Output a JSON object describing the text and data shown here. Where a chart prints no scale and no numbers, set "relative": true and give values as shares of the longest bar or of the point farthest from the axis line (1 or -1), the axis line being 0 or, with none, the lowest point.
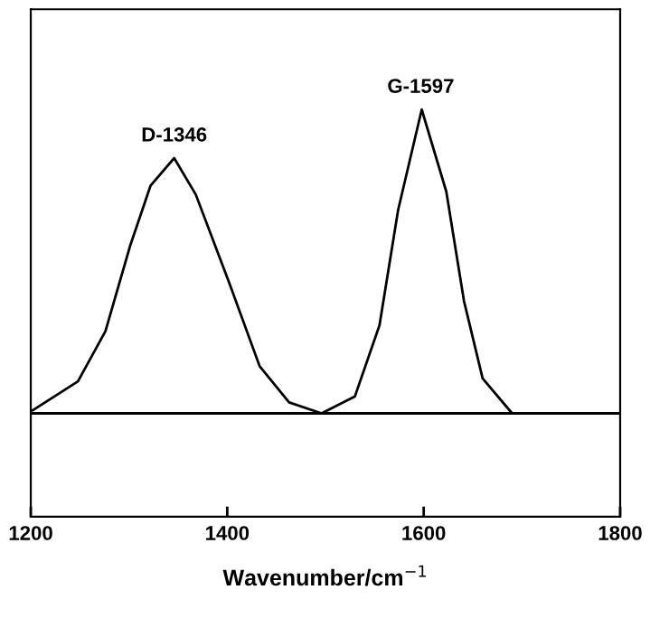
{
  "chart_data": {
    "type": "line",
    "relative": true,
    "xlabel": "Wavenumber/cm$^{−1}$",
    "xlim": [
      1200,
      1800
    ],
    "xticks": [
      1200,
      1400,
      1600,
      1800
    ],
    "series": [
      {
        "color": "#000000",
        "x": [
          1202,
          1248,
          1276,
          1301,
          1322,
          1346,
          1368,
          1402,
          1433,
          1463,
          1496,
          1530,
          1555,
          1574,
          1598,
          1623,
          1641,
          1660,
          1690,
          1800
        ],
        "values": [
          0.01,
          0.105,
          0.27,
          0.55,
          0.75,
          0.84,
          0.72,
          0.43,
          0.155,
          0.036,
          0,
          0.056,
          0.29,
          0.67,
          1.0,
          0.73,
          0.37,
          0.115,
          0,
          0
        ]
      }
    ],
    "ref_lines": [
      {
        "axis": "y",
        "value": 0,
        "color": "#000000"
      }
    ],
    "annotations": [
      {
        "text": "D-1346",
        "x": 1346,
        "y": 0.84
      },
      {
        "text": "G-1597",
        "x": 1597,
        "y": 1.0
      }
    ],
    "grid": false,
    "legend": false,
    "marker": "none",
    "line_style": "solid"
  }
}
